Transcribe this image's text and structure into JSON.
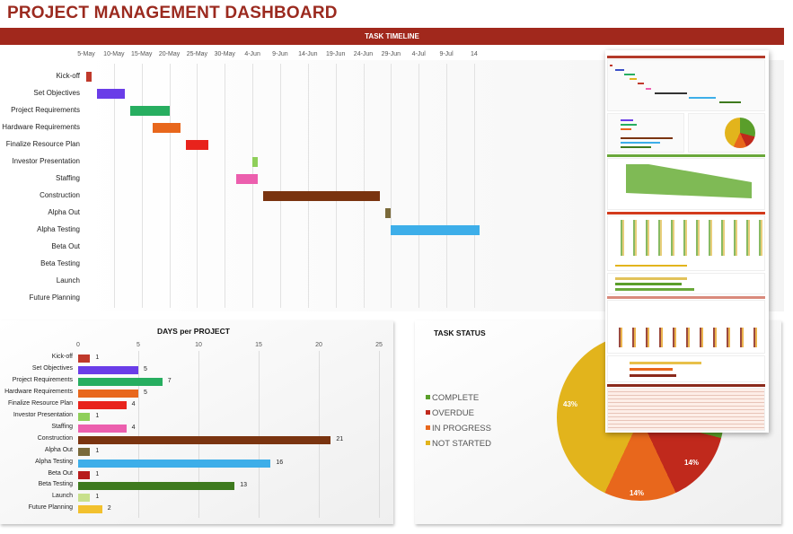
{
  "header": {
    "title": "PROJECT MANAGEMENT DASHBOARD"
  },
  "timeline": {
    "title": "TASK TIMELINE",
    "ticks": [
      "5-May",
      "10-May",
      "15-May",
      "20-May",
      "25-May",
      "30-May",
      "4-Jun",
      "9-Jun",
      "14-Jun",
      "19-Jun",
      "24-Jun",
      "29-Jun",
      "4-Jul",
      "9-Jul",
      "14"
    ],
    "tasks": [
      {
        "name": "Kick-off",
        "start_day": 0,
        "days": 1,
        "color": "#c0392b"
      },
      {
        "name": "Set Objectives",
        "start_day": 2,
        "days": 5,
        "color": "#6a3de8"
      },
      {
        "name": "Project Requirements",
        "start_day": 8,
        "days": 7,
        "color": "#27ae60"
      },
      {
        "name": "Hardware Requirements",
        "start_day": 12,
        "days": 5,
        "color": "#e8671c"
      },
      {
        "name": "Finalize Resource Plan",
        "start_day": 18,
        "days": 4,
        "color": "#e8231c"
      },
      {
        "name": "Investor Presentation",
        "start_day": 30,
        "days": 1,
        "color": "#8fcf5a"
      },
      {
        "name": "Staffing",
        "start_day": 27,
        "days": 4,
        "color": "#ec5fae"
      },
      {
        "name": "Construction",
        "start_day": 32,
        "days": 21,
        "color": "#7a3410"
      },
      {
        "name": "Alpha Out",
        "start_day": 54,
        "days": 1,
        "color": "#7a6a3a"
      },
      {
        "name": "Alpha Testing",
        "start_day": 55,
        "days": 16,
        "color": "#3daee9"
      },
      {
        "name": "Beta Out",
        "start_day": null,
        "days": 1,
        "color": "#b71c1c"
      },
      {
        "name": "Beta Testing",
        "start_day": null,
        "days": 13,
        "color": "#3e7a1e"
      },
      {
        "name": "Launch",
        "start_day": null,
        "days": 1,
        "color": "#c8e08c"
      },
      {
        "name": "Future Planning",
        "start_day": null,
        "days": 2,
        "color": "#f2c12e"
      }
    ]
  },
  "days_per_project": {
    "title": "DAYS per PROJECT",
    "ticks": [
      "0",
      "5",
      "10",
      "15",
      "20",
      "25"
    ]
  },
  "task_status": {
    "title": "TASK STATUS",
    "legend": [
      {
        "label": "COMPLETE",
        "color": "#5a9e2a"
      },
      {
        "label": "OVERDUE",
        "color": "#c0291c"
      },
      {
        "label": "IN PROGRESS",
        "color": "#e8671c"
      },
      {
        "label": "NOT STARTED",
        "color": "#e2b41c"
      }
    ],
    "labels": {
      "not_started": "43%",
      "overdue": "14%",
      "in_progress": "14%"
    }
  },
  "chart_data": [
    {
      "type": "bar",
      "title": "TASK TIMELINE",
      "orientation": "horizontal-gantt",
      "categories": [
        "Kick-off",
        "Set Objectives",
        "Project Requirements",
        "Hardware Requirements",
        "Finalize Resource Plan",
        "Investor Presentation",
        "Staffing",
        "Construction",
        "Alpha Out",
        "Alpha Testing",
        "Beta Out",
        "Beta Testing",
        "Launch",
        "Future Planning"
      ],
      "x_ticks": [
        "5-May",
        "10-May",
        "15-May",
        "20-May",
        "25-May",
        "30-May",
        "4-Jun",
        "9-Jun",
        "14-Jun",
        "19-Jun",
        "24-Jun",
        "29-Jun",
        "4-Jul",
        "9-Jul",
        "14"
      ],
      "start": [
        "5-May",
        "7-May",
        "13-May",
        "17-May",
        "23-May",
        "4-Jun",
        "1-Jun",
        "6-Jun",
        "28-Jun",
        "29-Jun",
        null,
        null,
        null,
        null
      ],
      "duration_days": [
        1,
        5,
        7,
        5,
        4,
        1,
        4,
        21,
        1,
        16,
        1,
        13,
        1,
        2
      ]
    },
    {
      "type": "bar",
      "title": "DAYS per PROJECT",
      "orientation": "horizontal",
      "categories": [
        "Kick-off",
        "Set Objectives",
        "Project Requirements",
        "Hardware Requirements",
        "Finalize Resource Plan",
        "Investor Presentation",
        "Staffing",
        "Construction",
        "Alpha Out",
        "Alpha Testing",
        "Beta Out",
        "Beta Testing",
        "Launch",
        "Future Planning"
      ],
      "values": [
        1,
        5,
        7,
        5,
        4,
        1,
        4,
        21,
        1,
        16,
        1,
        13,
        1,
        2
      ],
      "xlim": [
        0,
        25
      ],
      "x_ticks": [
        0,
        5,
        10,
        15,
        20,
        25
      ],
      "grid": true,
      "data_labels": true
    },
    {
      "type": "pie",
      "title": "TASK STATUS",
      "categories": [
        "COMPLETE",
        "OVERDUE",
        "IN PROGRESS",
        "NOT STARTED"
      ],
      "values": [
        29,
        14,
        14,
        43
      ],
      "visible_labels": {
        "NOT STARTED": "43%",
        "OVERDUE": "14%",
        "IN PROGRESS": "14%"
      },
      "legend_position": "left"
    }
  ]
}
